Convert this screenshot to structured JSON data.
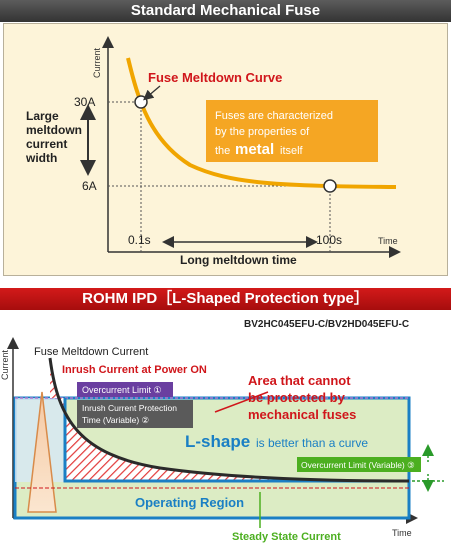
{
  "section1": {
    "title": "Standard Mechanical Fuse",
    "y_axis": "Current",
    "x_axis": "Time",
    "curve_label": "Fuse Meltdown Curve",
    "tick_30a": "30A",
    "tick_6a": "6A",
    "tick_01s": "0.1s",
    "tick_100s": "100s",
    "left_label": [
      "Large",
      "meltdown",
      "current",
      "width"
    ],
    "time_label": "Long meltdown time",
    "note": {
      "line1": "Fuses are characterized",
      "line2": "by the properties of",
      "line3_pre": "the",
      "line3_em": "metal",
      "line3_post": "itself"
    }
  },
  "section2": {
    "title": "ROHM IPD［L-Shaped Protection type］",
    "part_number": "BV2HC045EFU-C/BV2HD045EFU-C",
    "y_axis": "Current",
    "x_axis": "Time",
    "fuse_curve": "Fuse Meltdown Current",
    "inrush": "Inrush Current at Power ON",
    "overcurrent1": "Overcurrent Limit ①",
    "inrush_time": [
      "Inrush Current Protection",
      "Time (Variable) ②"
    ],
    "area_text": [
      "Area that cannot",
      "be protected by",
      "mechanical fuses"
    ],
    "lshape_em": "L-shape",
    "lshape_rest": "is better than a curve",
    "overcurrent3": "Overcurrent Limit (Variable) ③",
    "operating": "Operating Region",
    "steady": "Steady State Current"
  },
  "colors": {
    "curve": "#f0a500",
    "red_text": "#d0161b",
    "blue_text": "#1a7fc4",
    "green_box": "#4caf20",
    "purple": "#6a3fa0"
  }
}
